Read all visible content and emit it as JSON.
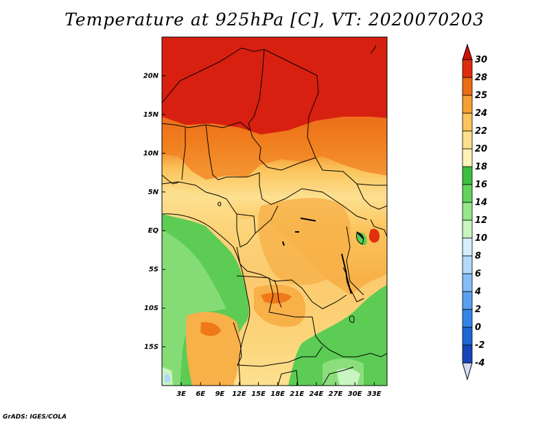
{
  "title": "Temperature at 925hPa [C], VT: 2020070203",
  "credit": "GrADS: IGES/COLA",
  "map": {
    "variable": "Temperature at 925hPa",
    "units": "C",
    "valid_time": "2020070203",
    "lon_range": [
      0,
      35
    ],
    "lat_range": [
      -20,
      25
    ],
    "x_ticks": [
      {
        "value": 3,
        "label": "3E"
      },
      {
        "value": 6,
        "label": "6E"
      },
      {
        "value": 9,
        "label": "9E"
      },
      {
        "value": 12,
        "label": "12E"
      },
      {
        "value": 15,
        "label": "15E"
      },
      {
        "value": 18,
        "label": "18E"
      },
      {
        "value": 21,
        "label": "21E"
      },
      {
        "value": 24,
        "label": "24E"
      },
      {
        "value": 27,
        "label": "27E"
      },
      {
        "value": 30,
        "label": "30E"
      },
      {
        "value": 33,
        "label": "33E"
      }
    ],
    "y_ticks": [
      {
        "value": 20,
        "label": "20N"
      },
      {
        "value": 15,
        "label": "15N"
      },
      {
        "value": 10,
        "label": "10N"
      },
      {
        "value": 5,
        "label": "5N"
      },
      {
        "value": 0,
        "label": "EQ"
      },
      {
        "value": -5,
        "label": "5S"
      },
      {
        "value": -10,
        "label": "10S"
      },
      {
        "value": -15,
        "label": "15S"
      }
    ]
  },
  "colorbar": {
    "levels": [
      "-4",
      "-2",
      "0",
      "2",
      "4",
      "6",
      "8",
      "10",
      "12",
      "14",
      "16",
      "18",
      "20",
      "22",
      "24",
      "25",
      "28",
      "30"
    ],
    "colors": [
      "#0a1a8c",
      "#1545b8",
      "#1e66d6",
      "#3484e8",
      "#5aa0f0",
      "#86bdf6",
      "#b4d9fa",
      "#d6eefc",
      "#c8f5c0",
      "#96e68a",
      "#62d35c",
      "#3cbf3c",
      "#fff3b8",
      "#fde08c",
      "#fbc45c",
      "#f6a034",
      "#ec6c14",
      "#e02c0a",
      "#cc1008"
    ],
    "below_color": "#d8dcf2",
    "above_color": "#cc1008"
  }
}
